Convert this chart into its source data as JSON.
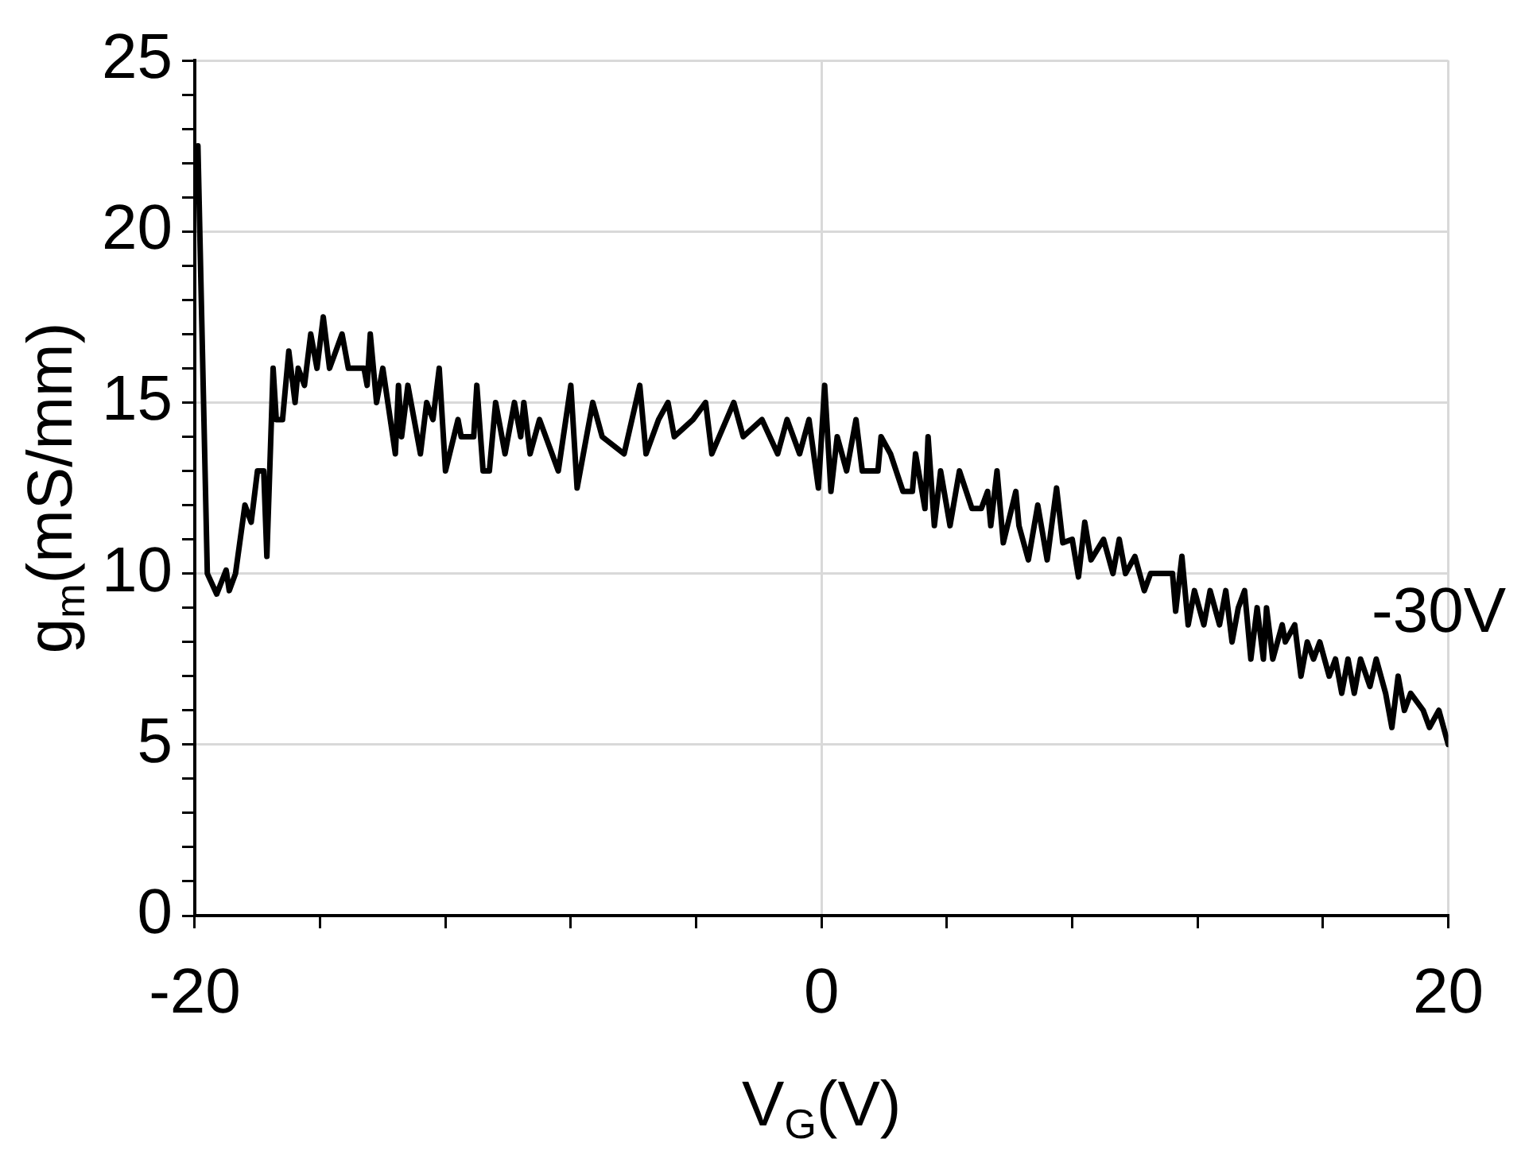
{
  "chart_data": {
    "type": "line",
    "xlabel": "V$_{G}$(V)",
    "ylabel": "g$_{m}$(mS/mm)",
    "xlim": [
      -20,
      20
    ],
    "xticks": [
      -20,
      {
        "value": -16,
        "label": null
      },
      {
        "value": -12,
        "label": null
      },
      {
        "value": -8,
        "label": null
      },
      {
        "value": -4,
        "label": null
      },
      0,
      {
        "value": 4,
        "label": null
      },
      {
        "value": 8,
        "label": null
      },
      {
        "value": 12,
        "label": null
      },
      {
        "value": 16,
        "label": null
      },
      20
    ],
    "ylim": [
      0,
      25
    ],
    "yticks": [
      0,
      {
        "value": 1,
        "label": null
      },
      {
        "value": 2,
        "label": null
      },
      {
        "value": 3,
        "label": null
      },
      {
        "value": 4,
        "label": null
      },
      5,
      {
        "value": 6,
        "label": null
      },
      {
        "value": 7,
        "label": null
      },
      {
        "value": 8,
        "label": null
      },
      {
        "value": 9,
        "label": null
      },
      10,
      {
        "value": 11,
        "label": null
      },
      {
        "value": 12,
        "label": null
      },
      {
        "value": 13,
        "label": null
      },
      {
        "value": 14,
        "label": null
      },
      15,
      {
        "value": 16,
        "label": null
      },
      {
        "value": 17,
        "label": null
      },
      {
        "value": 18,
        "label": null
      },
      {
        "value": 19,
        "label": null
      },
      20,
      {
        "value": 21,
        "label": null
      },
      {
        "value": 22,
        "label": null
      },
      {
        "value": 23,
        "label": null
      },
      {
        "value": 24,
        "label": null
      },
      25
    ],
    "grid": true,
    "legend": false,
    "marker": "none",
    "line_style": "solid",
    "series": [
      {
        "name": "-30V",
        "color": "#000000",
        "x": [
          -19.9,
          -19.6,
          -19.3,
          -19.0,
          -18.9,
          -18.7,
          -18.4,
          -18.2,
          -18.0,
          -17.8,
          -17.7,
          -17.5,
          -17.4,
          -17.2,
          -17.0,
          -16.8,
          -16.7,
          -16.5,
          -16.3,
          -16.1,
          -15.9,
          -15.7,
          -15.5,
          -15.3,
          -15.1,
          -14.6,
          -14.5,
          -14.4,
          -14.2,
          -14.0,
          -13.6,
          -13.5,
          -13.4,
          -13.2,
          -12.8,
          -12.6,
          -12.4,
          -12.2,
          -12.0,
          -11.6,
          -11.5,
          -11.1,
          -11.0,
          -10.8,
          -10.6,
          -10.4,
          -10.1,
          -9.8,
          -9.6,
          -9.5,
          -9.3,
          -9.0,
          -8.4,
          -8.0,
          -7.8,
          -7.3,
          -7.0,
          -6.3,
          -5.8,
          -5.6,
          -5.2,
          -4.9,
          -4.7,
          -4.1,
          -3.7,
          -3.5,
          -2.8,
          -2.5,
          -1.9,
          -1.4,
          -1.1,
          -0.7,
          -0.4,
          -0.1,
          0.1,
          0.3,
          0.5,
          0.8,
          1.1,
          1.3,
          1.8,
          1.9,
          2.2,
          2.6,
          2.9,
          3.0,
          3.3,
          3.4,
          3.6,
          3.8,
          4.1,
          4.4,
          4.8,
          5.1,
          5.3,
          5.4,
          5.6,
          5.8,
          6.2,
          6.3,
          6.6,
          6.9,
          7.2,
          7.5,
          7.7,
          8.0,
          8.2,
          8.4,
          8.6,
          9.0,
          9.3,
          9.5,
          9.7,
          10.0,
          10.3,
          10.5,
          11.2,
          11.3,
          11.5,
          11.7,
          11.9,
          12.2,
          12.4,
          12.7,
          12.9,
          13.1,
          13.3,
          13.5,
          13.7,
          13.9,
          14.1,
          14.2,
          14.4,
          14.7,
          14.8,
          15.1,
          15.3,
          15.5,
          15.7,
          15.9,
          16.2,
          16.4,
          16.6,
          16.8,
          17.0,
          17.2,
          17.5,
          17.7,
          18.0,
          18.2,
          18.4,
          18.6,
          18.8,
          19.2,
          19.4,
          19.7,
          20.0
        ],
        "values": [
          22.5,
          10.0,
          9.4,
          10.1,
          9.5,
          10.0,
          12.0,
          11.5,
          13.0,
          13.0,
          10.5,
          16.0,
          14.5,
          14.5,
          16.5,
          15.0,
          16.0,
          15.5,
          17.0,
          16.0,
          17.5,
          16.0,
          16.5,
          17.0,
          16.0,
          16.0,
          15.5,
          17.0,
          15.0,
          16.0,
          13.5,
          15.5,
          14.0,
          15.5,
          13.5,
          15.0,
          14.5,
          16.0,
          13.0,
          14.5,
          14.0,
          14.0,
          15.5,
          13.0,
          13.0,
          15.0,
          13.5,
          15.0,
          14.0,
          15.0,
          13.5,
          14.5,
          13.0,
          15.5,
          12.5,
          15.0,
          14.0,
          13.5,
          15.5,
          13.5,
          14.5,
          15.0,
          14.0,
          14.5,
          15.0,
          13.5,
          15.0,
          14.0,
          14.5,
          13.5,
          14.5,
          13.5,
          14.5,
          12.5,
          15.5,
          12.4,
          14.0,
          13.0,
          14.5,
          13.0,
          13.0,
          14.0,
          13.5,
          12.4,
          12.4,
          13.5,
          11.9,
          14.0,
          11.4,
          13.0,
          11.4,
          13.0,
          11.9,
          11.9,
          12.4,
          11.4,
          13.0,
          10.9,
          12.4,
          11.4,
          10.4,
          12.0,
          10.4,
          12.5,
          10.9,
          11.0,
          9.9,
          11.5,
          10.4,
          11.0,
          10.0,
          11.0,
          10.0,
          10.5,
          9.5,
          10.0,
          10.0,
          8.9,
          10.5,
          8.5,
          9.5,
          8.5,
          9.5,
          8.5,
          9.5,
          8.0,
          9.0,
          9.5,
          7.5,
          9.0,
          7.5,
          9.0,
          7.5,
          8.5,
          8.0,
          8.5,
          7.0,
          8.0,
          7.5,
          8.0,
          7.0,
          7.5,
          6.5,
          7.5,
          6.5,
          7.5,
          6.7,
          7.5,
          6.5,
          5.5,
          7.0,
          6.0,
          6.5,
          6.0,
          5.5,
          6.0,
          5.0
        ]
      }
    ]
  }
}
